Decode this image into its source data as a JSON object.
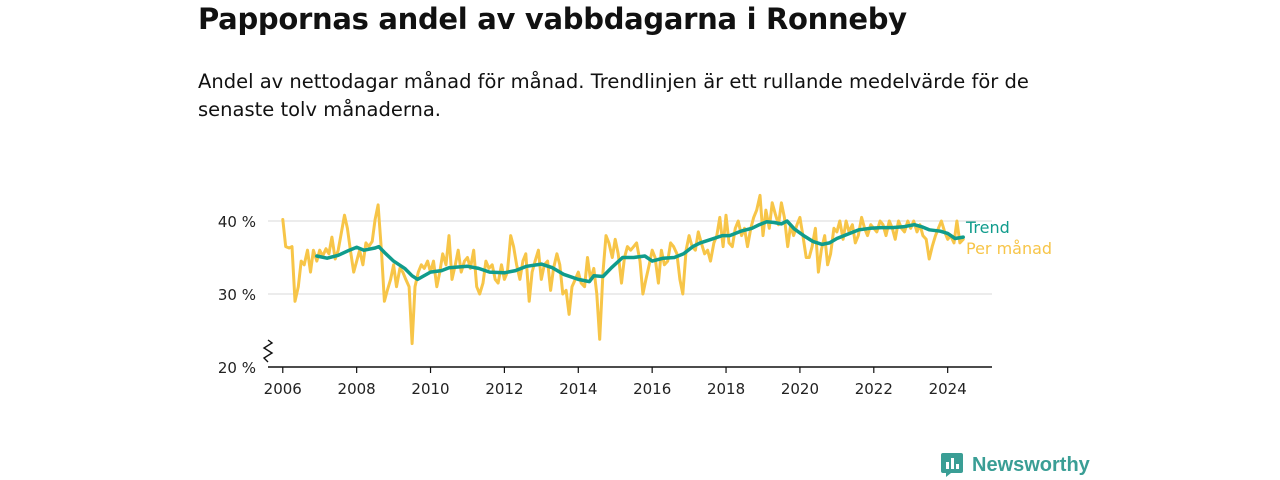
{
  "title": "Pappornas andel av vabbdagarna i Ronneby",
  "subtitle": "Andel av nettodagar månad för månad. Trendlinjen är ett rullande medelvärde för de senaste tolv månaderna.",
  "brand": {
    "name": "Newsworthy",
    "icon": "newsworthy-logo-icon"
  },
  "colors": {
    "monthly": "#f7c548",
    "trend": "#109c8c",
    "grid": "#d9d9d9",
    "axis": "#111111",
    "brand": "#3a9e95"
  },
  "chart_data": {
    "type": "line",
    "title": "Pappornas andel av vabbdagarna i Ronneby",
    "subtitle": "Andel av nettodagar månad för månad. Trendlinjen är ett rullande medelvärde för de senaste tolv månaderna.",
    "xlabel": "",
    "ylabel": "",
    "xlim": [
      2005.6,
      2025.2
    ],
    "ylim": [
      20,
      40
    ],
    "y_axis_break": true,
    "yticks": [
      20,
      30,
      40
    ],
    "ytick_labels": [
      "20 %",
      "30 %",
      "40 %"
    ],
    "xticks": [
      2006,
      2008,
      2010,
      2012,
      2014,
      2016,
      2018,
      2020,
      2022,
      2024
    ],
    "xtick_labels": [
      "2006",
      "2008",
      "2010",
      "2012",
      "2014",
      "2016",
      "2018",
      "2020",
      "2022",
      "2024"
    ],
    "grid": true,
    "legend": "direct labels at right end of lines",
    "series": [
      {
        "name": "Per månad",
        "points": [
          [
            2006.0,
            40.2
          ],
          [
            2006.08,
            36.5
          ],
          [
            2006.17,
            36.3
          ],
          [
            2006.25,
            36.5
          ],
          [
            2006.33,
            29.0
          ],
          [
            2006.42,
            31.0
          ],
          [
            2006.5,
            34.5
          ],
          [
            2006.58,
            34.0
          ],
          [
            2006.67,
            36.0
          ],
          [
            2006.75,
            33.0
          ],
          [
            2006.83,
            36.0
          ],
          [
            2006.92,
            34.5
          ],
          [
            2007.0,
            36.0
          ],
          [
            2007.08,
            35.2
          ],
          [
            2007.17,
            36.2
          ],
          [
            2007.25,
            35.5
          ],
          [
            2007.33,
            37.8
          ],
          [
            2007.42,
            34.8
          ],
          [
            2007.5,
            36.0
          ],
          [
            2007.58,
            38.2
          ],
          [
            2007.67,
            40.8
          ],
          [
            2007.75,
            39.0
          ],
          [
            2007.83,
            36.0
          ],
          [
            2007.92,
            33.0
          ],
          [
            2008.0,
            34.5
          ],
          [
            2008.08,
            36.0
          ],
          [
            2008.17,
            34.0
          ],
          [
            2008.25,
            37.0
          ],
          [
            2008.33,
            36.5
          ],
          [
            2008.42,
            37.2
          ],
          [
            2008.5,
            40.2
          ],
          [
            2008.58,
            42.2
          ],
          [
            2008.67,
            36.0
          ],
          [
            2008.75,
            29.0
          ],
          [
            2008.83,
            30.5
          ],
          [
            2008.92,
            32.0
          ],
          [
            2009.0,
            34.0
          ],
          [
            2009.08,
            31.0
          ],
          [
            2009.17,
            33.5
          ],
          [
            2009.25,
            33.0
          ],
          [
            2009.33,
            32.0
          ],
          [
            2009.42,
            31.0
          ],
          [
            2009.5,
            23.2
          ],
          [
            2009.58,
            31.0
          ],
          [
            2009.67,
            33.0
          ],
          [
            2009.75,
            34.0
          ],
          [
            2009.83,
            33.5
          ],
          [
            2009.92,
            34.5
          ],
          [
            2010.0,
            33.0
          ],
          [
            2010.08,
            34.5
          ],
          [
            2010.17,
            31.0
          ],
          [
            2010.25,
            33.0
          ],
          [
            2010.33,
            35.5
          ],
          [
            2010.42,
            34.0
          ],
          [
            2010.5,
            38.0
          ],
          [
            2010.58,
            32.0
          ],
          [
            2010.67,
            34.0
          ],
          [
            2010.75,
            36.0
          ],
          [
            2010.83,
            33.0
          ],
          [
            2010.92,
            34.5
          ],
          [
            2011.0,
            35.0
          ],
          [
            2011.08,
            33.5
          ],
          [
            2011.17,
            36.0
          ],
          [
            2011.25,
            31.0
          ],
          [
            2011.33,
            30.0
          ],
          [
            2011.42,
            31.5
          ],
          [
            2011.5,
            34.5
          ],
          [
            2011.58,
            33.5
          ],
          [
            2011.67,
            34.0
          ],
          [
            2011.75,
            32.0
          ],
          [
            2011.83,
            31.5
          ],
          [
            2011.92,
            34.0
          ],
          [
            2012.0,
            32.0
          ],
          [
            2012.08,
            33.0
          ],
          [
            2012.17,
            38.0
          ],
          [
            2012.25,
            36.5
          ],
          [
            2012.33,
            34.0
          ],
          [
            2012.42,
            32.0
          ],
          [
            2012.5,
            34.5
          ],
          [
            2012.58,
            35.5
          ],
          [
            2012.67,
            29.0
          ],
          [
            2012.75,
            33.0
          ],
          [
            2012.83,
            34.5
          ],
          [
            2012.92,
            36.0
          ],
          [
            2013.0,
            32.0
          ],
          [
            2013.08,
            34.0
          ],
          [
            2013.17,
            34.5
          ],
          [
            2013.25,
            30.5
          ],
          [
            2013.33,
            33.5
          ],
          [
            2013.42,
            35.5
          ],
          [
            2013.5,
            34.0
          ],
          [
            2013.58,
            30.0
          ],
          [
            2013.67,
            30.5
          ],
          [
            2013.75,
            27.2
          ],
          [
            2013.83,
            31.0
          ],
          [
            2013.92,
            32.0
          ],
          [
            2014.0,
            33.0
          ],
          [
            2014.08,
            31.5
          ],
          [
            2014.17,
            31.0
          ],
          [
            2014.25,
            35.0
          ],
          [
            2014.33,
            32.0
          ],
          [
            2014.42,
            33.5
          ],
          [
            2014.5,
            30.0
          ],
          [
            2014.58,
            23.8
          ],
          [
            2014.67,
            33.0
          ],
          [
            2014.75,
            38.0
          ],
          [
            2014.83,
            37.0
          ],
          [
            2014.92,
            35.0
          ],
          [
            2015.0,
            37.5
          ],
          [
            2015.08,
            35.5
          ],
          [
            2015.17,
            31.5
          ],
          [
            2015.25,
            35.0
          ],
          [
            2015.33,
            36.5
          ],
          [
            2015.42,
            36.0
          ],
          [
            2015.5,
            36.5
          ],
          [
            2015.58,
            37.0
          ],
          [
            2015.67,
            34.5
          ],
          [
            2015.75,
            30.0
          ],
          [
            2015.83,
            32.0
          ],
          [
            2015.92,
            34.0
          ],
          [
            2016.0,
            36.0
          ],
          [
            2016.08,
            35.0
          ],
          [
            2016.17,
            31.5
          ],
          [
            2016.25,
            36.0
          ],
          [
            2016.33,
            34.0
          ],
          [
            2016.42,
            34.5
          ],
          [
            2016.5,
            37.0
          ],
          [
            2016.58,
            36.5
          ],
          [
            2016.67,
            35.5
          ],
          [
            2016.75,
            32.0
          ],
          [
            2016.83,
            30.0
          ],
          [
            2016.92,
            36.0
          ],
          [
            2017.0,
            38.0
          ],
          [
            2017.08,
            36.5
          ],
          [
            2017.17,
            36.0
          ],
          [
            2017.25,
            38.5
          ],
          [
            2017.33,
            37.0
          ],
          [
            2017.42,
            35.5
          ],
          [
            2017.5,
            36.0
          ],
          [
            2017.58,
            34.5
          ],
          [
            2017.67,
            37.0
          ],
          [
            2017.75,
            38.0
          ],
          [
            2017.83,
            40.5
          ],
          [
            2017.92,
            36.5
          ],
          [
            2018.0,
            40.8
          ],
          [
            2018.08,
            37.0
          ],
          [
            2018.17,
            36.5
          ],
          [
            2018.25,
            39.0
          ],
          [
            2018.33,
            40.0
          ],
          [
            2018.42,
            38.0
          ],
          [
            2018.5,
            39.0
          ],
          [
            2018.58,
            36.5
          ],
          [
            2018.67,
            39.0
          ],
          [
            2018.75,
            40.5
          ],
          [
            2018.83,
            41.5
          ],
          [
            2018.92,
            43.5
          ],
          [
            2019.0,
            38.0
          ],
          [
            2019.08,
            41.5
          ],
          [
            2019.17,
            39.0
          ],
          [
            2019.25,
            42.5
          ],
          [
            2019.33,
            41.0
          ],
          [
            2019.42,
            39.5
          ],
          [
            2019.5,
            42.5
          ],
          [
            2019.58,
            40.5
          ],
          [
            2019.67,
            36.5
          ],
          [
            2019.75,
            39.5
          ],
          [
            2019.83,
            38.0
          ],
          [
            2019.92,
            39.5
          ],
          [
            2020.0,
            40.5
          ],
          [
            2020.08,
            38.0
          ],
          [
            2020.17,
            35.0
          ],
          [
            2020.25,
            35.0
          ],
          [
            2020.33,
            36.5
          ],
          [
            2020.42,
            39.0
          ],
          [
            2020.5,
            33.0
          ],
          [
            2020.58,
            36.0
          ],
          [
            2020.67,
            38.0
          ],
          [
            2020.75,
            34.0
          ],
          [
            2020.83,
            35.5
          ],
          [
            2020.92,
            39.0
          ],
          [
            2021.0,
            38.5
          ],
          [
            2021.08,
            40.0
          ],
          [
            2021.17,
            37.5
          ],
          [
            2021.25,
            40.0
          ],
          [
            2021.33,
            38.5
          ],
          [
            2021.42,
            39.5
          ],
          [
            2021.5,
            37.0
          ],
          [
            2021.58,
            38.0
          ],
          [
            2021.67,
            40.5
          ],
          [
            2021.75,
            39.0
          ],
          [
            2021.83,
            38.0
          ],
          [
            2021.92,
            39.5
          ],
          [
            2022.0,
            39.0
          ],
          [
            2022.08,
            38.5
          ],
          [
            2022.17,
            40.0
          ],
          [
            2022.25,
            39.5
          ],
          [
            2022.33,
            38.0
          ],
          [
            2022.42,
            40.0
          ],
          [
            2022.5,
            39.0
          ],
          [
            2022.58,
            37.5
          ],
          [
            2022.67,
            40.0
          ],
          [
            2022.75,
            39.0
          ],
          [
            2022.83,
            38.5
          ],
          [
            2022.92,
            40.0
          ],
          [
            2023.0,
            39.0
          ],
          [
            2023.08,
            40.0
          ],
          [
            2023.17,
            38.5
          ],
          [
            2023.25,
            39.5
          ],
          [
            2023.33,
            38.0
          ],
          [
            2023.42,
            37.5
          ],
          [
            2023.5,
            34.8
          ],
          [
            2023.58,
            36.5
          ],
          [
            2023.67,
            38.0
          ],
          [
            2023.75,
            39.0
          ],
          [
            2023.83,
            40.0
          ],
          [
            2023.92,
            38.5
          ],
          [
            2024.0,
            37.5
          ],
          [
            2024.08,
            38.0
          ],
          [
            2024.17,
            37.0
          ],
          [
            2024.25,
            40.0
          ],
          [
            2024.33,
            37.0
          ],
          [
            2024.42,
            37.5
          ]
        ]
      },
      {
        "name": "Trend",
        "points": [
          [
            2006.92,
            35.2
          ],
          [
            2007.2,
            34.9
          ],
          [
            2007.5,
            35.3
          ],
          [
            2007.8,
            36.0
          ],
          [
            2008.0,
            36.4
          ],
          [
            2008.2,
            36.0
          ],
          [
            2008.5,
            36.3
          ],
          [
            2008.6,
            36.5
          ],
          [
            2008.75,
            35.7
          ],
          [
            2009.0,
            34.5
          ],
          [
            2009.3,
            33.5
          ],
          [
            2009.5,
            32.5
          ],
          [
            2009.65,
            32.0
          ],
          [
            2010.0,
            33.0
          ],
          [
            2010.3,
            33.2
          ],
          [
            2010.5,
            33.6
          ],
          [
            2011.0,
            33.8
          ],
          [
            2011.3,
            33.5
          ],
          [
            2011.6,
            33.0
          ],
          [
            2012.0,
            32.9
          ],
          [
            2012.3,
            33.2
          ],
          [
            2012.6,
            33.8
          ],
          [
            2013.0,
            34.1
          ],
          [
            2013.3,
            33.6
          ],
          [
            2013.6,
            32.7
          ],
          [
            2014.0,
            32.0
          ],
          [
            2014.3,
            31.7
          ],
          [
            2014.42,
            32.5
          ],
          [
            2014.67,
            32.4
          ],
          [
            2014.9,
            33.6
          ],
          [
            2015.2,
            35.0
          ],
          [
            2015.5,
            35.0
          ],
          [
            2015.8,
            35.2
          ],
          [
            2016.0,
            34.5
          ],
          [
            2016.3,
            34.9
          ],
          [
            2016.6,
            35.0
          ],
          [
            2016.85,
            35.5
          ],
          [
            2017.1,
            36.5
          ],
          [
            2017.3,
            37.0
          ],
          [
            2017.6,
            37.5
          ],
          [
            2017.9,
            38.0
          ],
          [
            2018.1,
            38.0
          ],
          [
            2018.4,
            38.6
          ],
          [
            2018.7,
            39.0
          ],
          [
            2018.9,
            39.5
          ],
          [
            2019.1,
            39.9
          ],
          [
            2019.3,
            39.8
          ],
          [
            2019.5,
            39.6
          ],
          [
            2019.65,
            40.0
          ],
          [
            2019.85,
            38.9
          ],
          [
            2020.1,
            38.0
          ],
          [
            2020.35,
            37.2
          ],
          [
            2020.6,
            36.8
          ],
          [
            2020.8,
            37.0
          ],
          [
            2021.0,
            37.6
          ],
          [
            2021.3,
            38.2
          ],
          [
            2021.6,
            38.8
          ],
          [
            2021.9,
            39.0
          ],
          [
            2022.2,
            39.1
          ],
          [
            2022.5,
            39.1
          ],
          [
            2022.8,
            39.2
          ],
          [
            2023.1,
            39.5
          ],
          [
            2023.3,
            39.2
          ],
          [
            2023.5,
            38.8
          ],
          [
            2023.8,
            38.6
          ],
          [
            2024.0,
            38.3
          ],
          [
            2024.2,
            37.6
          ],
          [
            2024.42,
            37.8
          ]
        ]
      }
    ]
  }
}
